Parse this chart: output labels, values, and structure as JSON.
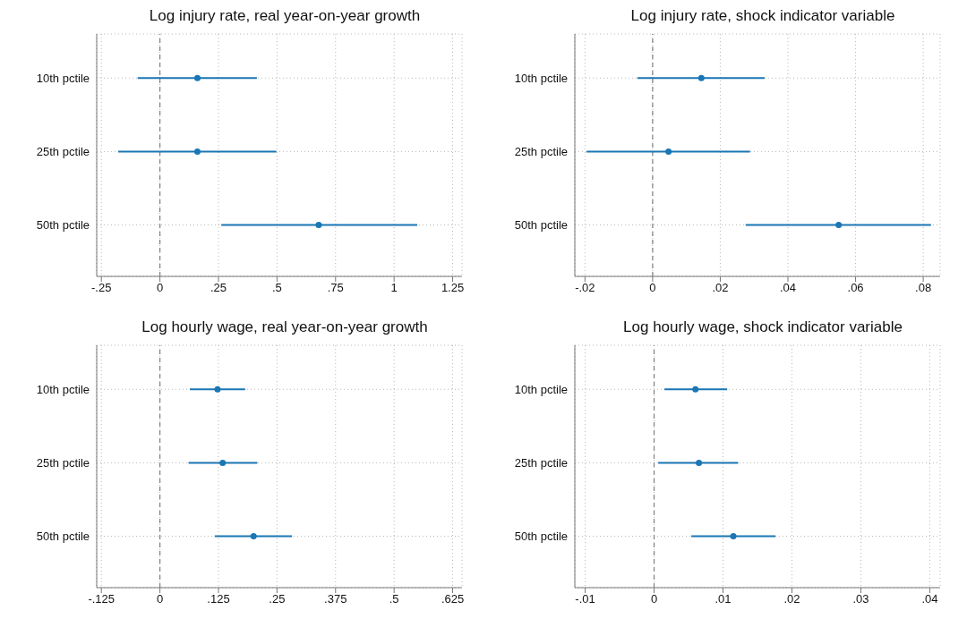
{
  "chart_data": [
    {
      "type": "scatter",
      "orientation": "horizontal",
      "title": "Log injury rate, real year-on-year growth",
      "categories": [
        "10th pctile",
        "25th pctile",
        "50th pctile"
      ],
      "values": [
        0.16,
        0.16,
        0.678
      ],
      "errors": [
        [
          -0.095,
          0.414
        ],
        [
          -0.178,
          0.497
        ],
        [
          0.262,
          1.099
        ]
      ],
      "color": "#1a76b4",
      "marker": "circle",
      "grid": true,
      "xlim": [
        -0.27,
        1.29
      ],
      "xticks": [
        {
          "value": -0.25,
          "label": "-.25"
        },
        0,
        {
          "value": 0.25,
          "label": ".25"
        },
        {
          "value": 0.5,
          "label": ".5"
        },
        {
          "value": 0.75,
          "label": ".75"
        },
        1,
        1.25
      ],
      "ref_lines": [
        {
          "axis": "x",
          "value": 0,
          "color": "#808080",
          "line_style": "dashed"
        }
      ]
    },
    {
      "type": "scatter",
      "orientation": "horizontal",
      "title": "Log injury rate, shock indicator variable",
      "categories": [
        "10th pctile",
        "25th pctile",
        "50th pctile"
      ],
      "values": [
        0.0144,
        0.0047,
        0.055
      ],
      "errors": [
        [
          -0.0045,
          0.0331
        ],
        [
          -0.0195,
          0.0288
        ],
        [
          0.0275,
          0.0823
        ]
      ],
      "color": "#1a76b4",
      "marker": "circle",
      "grid": true,
      "xlim": [
        -0.023,
        0.085
      ],
      "xticks": [
        {
          "value": -0.02,
          "label": "-.02"
        },
        0,
        {
          "value": 0.02,
          "label": ".02"
        },
        {
          "value": 0.04,
          "label": ".04"
        },
        {
          "value": 0.06,
          "label": ".06"
        },
        {
          "value": 0.08,
          "label": ".08"
        }
      ],
      "ref_lines": [
        {
          "axis": "x",
          "value": 0,
          "color": "#808080",
          "line_style": "dashed"
        }
      ]
    },
    {
      "type": "scatter",
      "orientation": "horizontal",
      "title": "Log hourly wage, real year-on-year growth",
      "categories": [
        "10th pctile",
        "25th pctile",
        "50th pctile"
      ],
      "values": [
        0.123,
        0.134,
        0.2
      ],
      "errors": [
        [
          0.064,
          0.182
        ],
        [
          0.061,
          0.208
        ],
        [
          0.117,
          0.282
        ]
      ],
      "color": "#1a76b4",
      "marker": "circle",
      "grid": true,
      "xlim": [
        -0.135,
        0.645
      ],
      "xticks": [
        {
          "value": -0.125,
          "label": "-.125"
        },
        0,
        {
          "value": 0.125,
          "label": ".125"
        },
        {
          "value": 0.25,
          "label": ".25"
        },
        {
          "value": 0.375,
          "label": ".375"
        },
        {
          "value": 0.5,
          "label": ".5"
        },
        {
          "value": 0.625,
          "label": ".625"
        }
      ],
      "ref_lines": [
        {
          "axis": "x",
          "value": 0,
          "color": "#808080",
          "line_style": "dashed"
        }
      ]
    },
    {
      "type": "scatter",
      "orientation": "horizontal",
      "title": "Log hourly wage, shock indicator variable",
      "categories": [
        "10th pctile",
        "25th pctile",
        "50th pctile"
      ],
      "values": [
        0.006,
        0.0065,
        0.0115
      ],
      "errors": [
        [
          0.0015,
          0.0106
        ],
        [
          0.0006,
          0.0122
        ],
        [
          0.0054,
          0.0176
        ]
      ],
      "color": "#1a76b4",
      "marker": "circle",
      "grid": true,
      "xlim": [
        -0.0115,
        0.0415
      ],
      "xticks": [
        {
          "value": -0.01,
          "label": "-.01"
        },
        0,
        {
          "value": 0.01,
          "label": ".01"
        },
        {
          "value": 0.02,
          "label": ".02"
        },
        {
          "value": 0.03,
          "label": ".03"
        },
        {
          "value": 0.04,
          "label": ".04"
        }
      ],
      "ref_lines": [
        {
          "axis": "x",
          "value": 0,
          "color": "#808080",
          "line_style": "dashed"
        }
      ]
    }
  ]
}
